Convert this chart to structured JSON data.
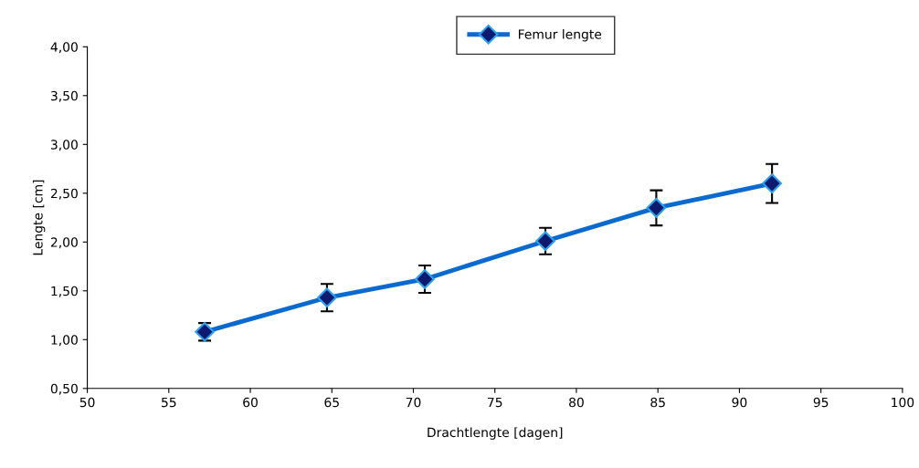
{
  "chart_data": {
    "type": "line",
    "xlabel": "Drachtlengte [dagen]",
    "ylabel": "Lengte [cm]",
    "x": [
      57.2,
      64.7,
      70.7,
      78.1,
      84.9,
      92.0
    ],
    "series": [
      {
        "name": "Femur lengte",
        "color": "#0a6ad0",
        "values": [
          1.08,
          1.43,
          1.62,
          2.01,
          2.35,
          2.6
        ],
        "errors": [
          0.09,
          0.14,
          0.14,
          0.135,
          0.18,
          0.2
        ]
      }
    ],
    "xlim": [
      50,
      100
    ],
    "xticks": [
      50,
      55,
      60,
      65,
      70,
      75,
      80,
      85,
      90,
      95,
      100
    ],
    "ylim": [
      0.5,
      4.0
    ],
    "yticks": [
      {
        "value": 0.5,
        "label": "0,50"
      },
      {
        "value": 1.0,
        "label": "1,00"
      },
      {
        "value": 1.5,
        "label": "1,50"
      },
      {
        "value": 2.0,
        "label": "2,00"
      },
      {
        "value": 2.5,
        "label": "2,50"
      },
      {
        "value": 3.0,
        "label": "3,00"
      },
      {
        "value": 3.5,
        "label": "3,50"
      },
      {
        "value": 4.0,
        "label": "4,00"
      }
    ],
    "marker": "diamond",
    "line_style": "solid",
    "grid": false,
    "legend": "top"
  }
}
